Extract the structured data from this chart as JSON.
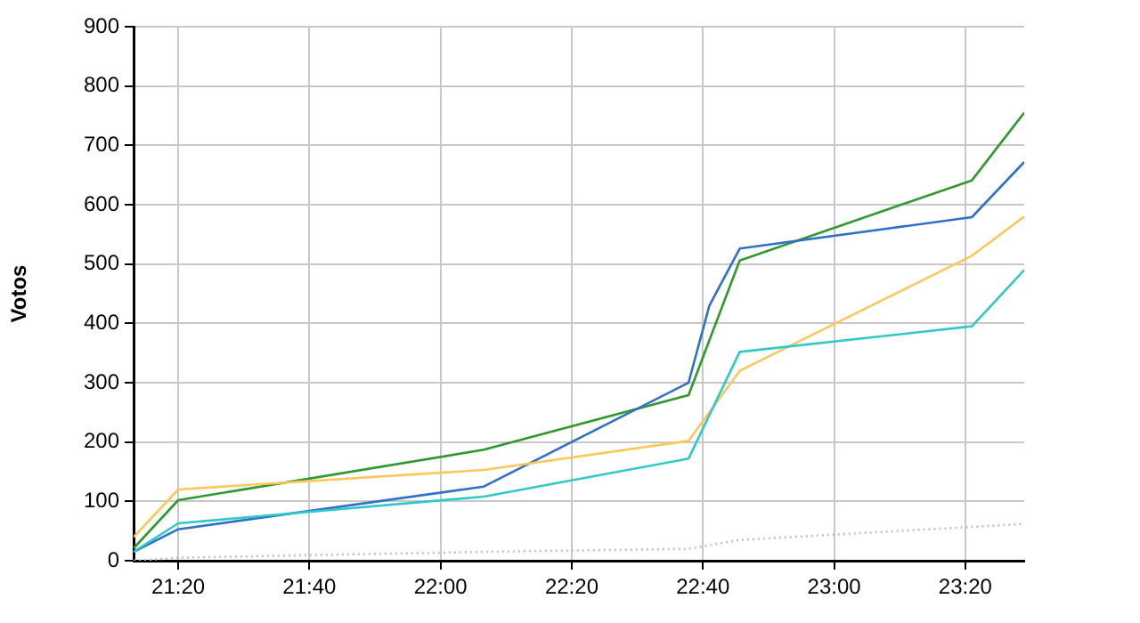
{
  "chart_data": {
    "type": "line",
    "ylabel": "Votos",
    "ylim": [
      0,
      900
    ],
    "yticks": [
      0,
      100,
      200,
      300,
      400,
      500,
      600,
      700,
      800,
      900
    ],
    "xlim": [
      21.22,
      23.483
    ],
    "xticks": [
      {
        "value": 21.3333,
        "label": "21:20"
      },
      {
        "value": 21.6667,
        "label": "21:40"
      },
      {
        "value": 22,
        "label": "22:00"
      },
      {
        "value": 22.3333,
        "label": "22:20"
      },
      {
        "value": 22.6667,
        "label": "22:40"
      },
      {
        "value": 23,
        "label": "23:00"
      },
      {
        "value": 23.3333,
        "label": "23:20"
      }
    ],
    "grid": true,
    "legend": false,
    "marker": "none",
    "line_style": "solid",
    "series": [
      {
        "color": "#c0c0c0",
        "line_style": "dotted",
        "x": [
          21.22,
          21.3333,
          22.11,
          22.63,
          22.76,
          23.35,
          23.483
        ],
        "values": [
          0,
          5,
          15,
          20,
          35,
          57,
          62
        ]
      },
      {
        "color": "#30c8c8",
        "x": [
          21.22,
          21.3333,
          22.11,
          22.63,
          22.76,
          23.35,
          23.483
        ],
        "values": [
          15,
          63,
          108,
          172,
          352,
          395,
          490
        ]
      },
      {
        "color": "#ffc65a",
        "x": [
          21.22,
          21.3333,
          22.11,
          22.63,
          22.76,
          23.35,
          23.483
        ],
        "values": [
          40,
          120,
          153,
          202,
          320,
          514,
          580
        ]
      },
      {
        "color": "#3070c8",
        "x": [
          21.22,
          21.3333,
          22.11,
          22.63,
          22.683,
          22.76,
          23.35,
          23.483
        ],
        "values": [
          15,
          53,
          125,
          300,
          430,
          526,
          579,
          672
        ]
      },
      {
        "color": "#2e9a2e",
        "x": [
          21.22,
          21.3333,
          22.11,
          22.63,
          22.76,
          23.35,
          23.483
        ],
        "values": [
          21,
          102,
          187,
          279,
          506,
          641,
          755
        ]
      }
    ]
  }
}
